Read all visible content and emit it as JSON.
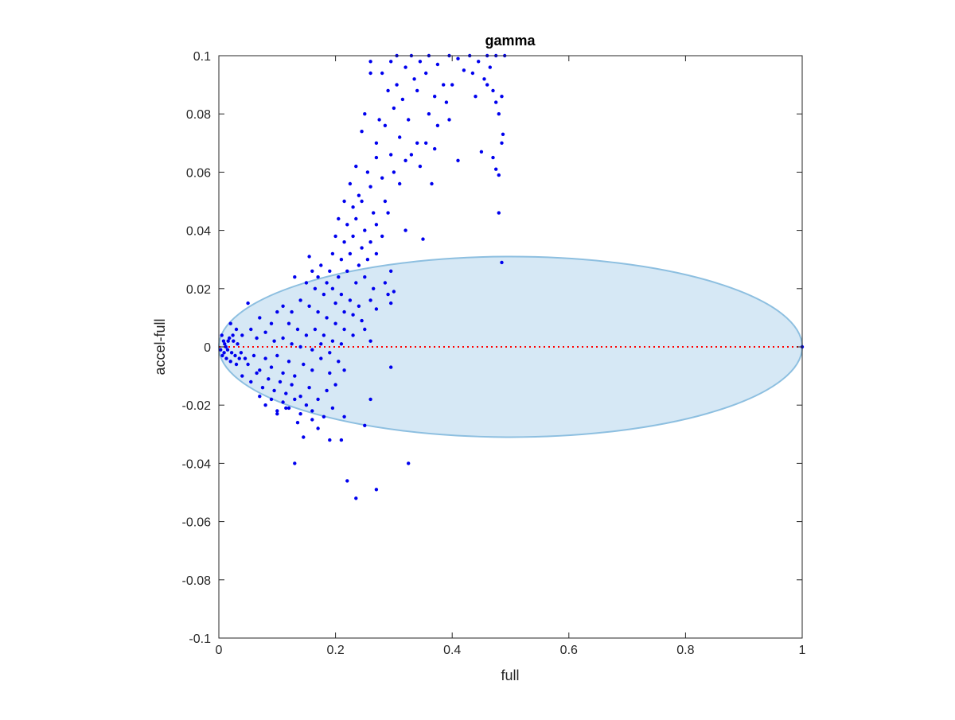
{
  "chart_data": {
    "type": "scatter",
    "title": "gamma",
    "xlabel": "full",
    "ylabel": "accel-full",
    "xlim": [
      0,
      1
    ],
    "ylim": [
      -0.1,
      0.1
    ],
    "x_ticks": [
      0,
      0.2,
      0.4,
      0.6,
      0.8,
      1
    ],
    "x_tick_labels": [
      "0",
      "0.2",
      "0.4",
      "0.6",
      "0.8",
      "1"
    ],
    "y_ticks": [
      -0.1,
      -0.08,
      -0.06,
      -0.04,
      -0.02,
      0,
      0.02,
      0.04,
      0.06,
      0.08,
      0.1
    ],
    "y_tick_labels": [
      "-0.1",
      "-0.08",
      "-0.06",
      "-0.04",
      "-0.02",
      "0",
      "0.02",
      "0.04",
      "0.06",
      "0.08",
      "0.1"
    ],
    "grid": false,
    "legend": "none",
    "ellipse": {
      "center": [
        0.5,
        0.0
      ],
      "semi_axes": [
        0.5,
        0.031
      ],
      "fill": "#d6e8f5",
      "stroke": "#8dbfe0"
    },
    "reference_line": {
      "x": [
        0,
        1
      ],
      "y": [
        0,
        0
      ],
      "color": "#ff0000",
      "style": "dotted"
    },
    "series": [
      {
        "color": "#0000ee",
        "marker": "point",
        "points": [
          [
            1.0,
            0.0
          ],
          [
            0.485,
            0.029
          ],
          [
            0.48,
            0.046
          ],
          [
            0.305,
            0.1
          ],
          [
            0.33,
            0.1
          ],
          [
            0.36,
            0.1
          ],
          [
            0.395,
            0.1
          ],
          [
            0.43,
            0.1
          ],
          [
            0.46,
            0.1
          ],
          [
            0.475,
            0.1
          ],
          [
            0.49,
            0.1
          ],
          [
            0.295,
            0.098
          ],
          [
            0.32,
            0.096
          ],
          [
            0.345,
            0.098
          ],
          [
            0.375,
            0.097
          ],
          [
            0.41,
            0.099
          ],
          [
            0.445,
            0.098
          ],
          [
            0.26,
            0.098
          ],
          [
            0.28,
            0.094
          ],
          [
            0.305,
            0.09
          ],
          [
            0.335,
            0.092
          ],
          [
            0.355,
            0.094
          ],
          [
            0.385,
            0.09
          ],
          [
            0.42,
            0.095
          ],
          [
            0.455,
            0.092
          ],
          [
            0.47,
            0.088
          ],
          [
            0.26,
            0.094
          ],
          [
            0.29,
            0.088
          ],
          [
            0.315,
            0.085
          ],
          [
            0.34,
            0.088
          ],
          [
            0.37,
            0.086
          ],
          [
            0.4,
            0.09
          ],
          [
            0.435,
            0.094
          ],
          [
            0.465,
            0.096
          ],
          [
            0.25,
            0.08
          ],
          [
            0.275,
            0.078
          ],
          [
            0.3,
            0.082
          ],
          [
            0.325,
            0.078
          ],
          [
            0.36,
            0.08
          ],
          [
            0.39,
            0.084
          ],
          [
            0.44,
            0.086
          ],
          [
            0.475,
            0.084
          ],
          [
            0.485,
            0.086
          ],
          [
            0.245,
            0.074
          ],
          [
            0.27,
            0.07
          ],
          [
            0.285,
            0.076
          ],
          [
            0.31,
            0.072
          ],
          [
            0.34,
            0.07
          ],
          [
            0.375,
            0.076
          ],
          [
            0.395,
            0.078
          ],
          [
            0.46,
            0.09
          ],
          [
            0.235,
            0.062
          ],
          [
            0.255,
            0.06
          ],
          [
            0.27,
            0.065
          ],
          [
            0.295,
            0.066
          ],
          [
            0.32,
            0.064
          ],
          [
            0.345,
            0.062
          ],
          [
            0.37,
            0.068
          ],
          [
            0.41,
            0.064
          ],
          [
            0.45,
            0.067
          ],
          [
            0.48,
            0.08
          ],
          [
            0.225,
            0.056
          ],
          [
            0.24,
            0.052
          ],
          [
            0.26,
            0.055
          ],
          [
            0.28,
            0.058
          ],
          [
            0.3,
            0.06
          ],
          [
            0.33,
            0.066
          ],
          [
            0.355,
            0.07
          ],
          [
            0.485,
            0.07
          ],
          [
            0.487,
            0.073
          ],
          [
            0.215,
            0.05
          ],
          [
            0.23,
            0.048
          ],
          [
            0.245,
            0.05
          ],
          [
            0.265,
            0.046
          ],
          [
            0.285,
            0.05
          ],
          [
            0.31,
            0.056
          ],
          [
            0.475,
            0.061
          ],
          [
            0.48,
            0.059
          ],
          [
            0.205,
            0.044
          ],
          [
            0.22,
            0.042
          ],
          [
            0.235,
            0.044
          ],
          [
            0.25,
            0.04
          ],
          [
            0.27,
            0.042
          ],
          [
            0.29,
            0.046
          ],
          [
            0.365,
            0.056
          ],
          [
            0.47,
            0.065
          ],
          [
            0.2,
            0.038
          ],
          [
            0.215,
            0.036
          ],
          [
            0.23,
            0.038
          ],
          [
            0.245,
            0.034
          ],
          [
            0.26,
            0.036
          ],
          [
            0.28,
            0.038
          ],
          [
            0.32,
            0.04
          ],
          [
            0.35,
            0.037
          ],
          [
            0.195,
            0.032
          ],
          [
            0.21,
            0.03
          ],
          [
            0.225,
            0.032
          ],
          [
            0.24,
            0.028
          ],
          [
            0.255,
            0.03
          ],
          [
            0.27,
            0.032
          ],
          [
            0.295,
            0.026
          ],
          [
            0.16,
            0.026
          ],
          [
            0.175,
            0.028
          ],
          [
            0.19,
            0.026
          ],
          [
            0.205,
            0.024
          ],
          [
            0.22,
            0.026
          ],
          [
            0.235,
            0.022
          ],
          [
            0.25,
            0.024
          ],
          [
            0.265,
            0.02
          ],
          [
            0.285,
            0.022
          ],
          [
            0.13,
            0.024
          ],
          [
            0.15,
            0.022
          ],
          [
            0.165,
            0.02
          ],
          [
            0.18,
            0.018
          ],
          [
            0.195,
            0.02
          ],
          [
            0.21,
            0.018
          ],
          [
            0.225,
            0.016
          ],
          [
            0.24,
            0.014
          ],
          [
            0.26,
            0.016
          ],
          [
            0.29,
            0.018
          ],
          [
            0.3,
            0.019
          ],
          [
            0.155,
            0.031
          ],
          [
            0.17,
            0.024
          ],
          [
            0.185,
            0.022
          ],
          [
            0.2,
            0.015
          ],
          [
            0.215,
            0.012
          ],
          [
            0.23,
            0.011
          ],
          [
            0.245,
            0.009
          ],
          [
            0.27,
            0.013
          ],
          [
            0.295,
            0.015
          ],
          [
            0.11,
            0.014
          ],
          [
            0.125,
            0.012
          ],
          [
            0.14,
            0.016
          ],
          [
            0.155,
            0.014
          ],
          [
            0.17,
            0.012
          ],
          [
            0.185,
            0.01
          ],
          [
            0.2,
            0.008
          ],
          [
            0.215,
            0.006
          ],
          [
            0.23,
            0.004
          ],
          [
            0.25,
            0.006
          ],
          [
            0.26,
            0.002
          ],
          [
            0.05,
            0.015
          ],
          [
            0.07,
            0.01
          ],
          [
            0.09,
            0.008
          ],
          [
            0.1,
            0.012
          ],
          [
            0.12,
            0.008
          ],
          [
            0.135,
            0.006
          ],
          [
            0.15,
            0.004
          ],
          [
            0.165,
            0.006
          ],
          [
            0.18,
            0.004
          ],
          [
            0.195,
            0.002
          ],
          [
            0.21,
            0.001
          ],
          [
            0.02,
            0.008
          ],
          [
            0.03,
            0.006
          ],
          [
            0.04,
            0.004
          ],
          [
            0.055,
            0.006
          ],
          [
            0.065,
            0.003
          ],
          [
            0.08,
            0.005
          ],
          [
            0.095,
            0.002
          ],
          [
            0.11,
            0.003
          ],
          [
            0.125,
            0.001
          ],
          [
            0.14,
            0.0
          ],
          [
            0.16,
            -0.001
          ],
          [
            0.175,
            0.001
          ],
          [
            0.19,
            -0.002
          ],
          [
            0.005,
            0.004
          ],
          [
            0.008,
            0.002
          ],
          [
            0.01,
            0.001
          ],
          [
            0.012,
            0.0
          ],
          [
            0.015,
            -0.001
          ],
          [
            0.018,
            0.003
          ],
          [
            0.022,
            -0.002
          ],
          [
            0.025,
            0.002
          ],
          [
            0.028,
            -0.003
          ],
          [
            0.032,
            0.001
          ],
          [
            0.035,
            -0.004
          ],
          [
            0.003,
            -0.001
          ],
          [
            0.006,
            -0.003
          ],
          [
            0.009,
            -0.002
          ],
          [
            0.013,
            -0.004
          ],
          [
            0.016,
            0.002
          ],
          [
            0.02,
            -0.005
          ],
          [
            0.024,
            0.004
          ],
          [
            0.03,
            -0.006
          ],
          [
            0.038,
            -0.002
          ],
          [
            0.045,
            -0.004
          ],
          [
            0.05,
            -0.006
          ],
          [
            0.06,
            -0.003
          ],
          [
            0.07,
            -0.008
          ],
          [
            0.08,
            -0.004
          ],
          [
            0.09,
            -0.007
          ],
          [
            0.1,
            -0.003
          ],
          [
            0.11,
            -0.009
          ],
          [
            0.12,
            -0.005
          ],
          [
            0.13,
            -0.01
          ],
          [
            0.145,
            -0.006
          ],
          [
            0.16,
            -0.008
          ],
          [
            0.175,
            -0.004
          ],
          [
            0.19,
            -0.009
          ],
          [
            0.205,
            -0.005
          ],
          [
            0.215,
            -0.008
          ],
          [
            0.04,
            -0.01
          ],
          [
            0.055,
            -0.012
          ],
          [
            0.065,
            -0.009
          ],
          [
            0.075,
            -0.014
          ],
          [
            0.085,
            -0.011
          ],
          [
            0.095,
            -0.015
          ],
          [
            0.105,
            -0.012
          ],
          [
            0.115,
            -0.016
          ],
          [
            0.125,
            -0.013
          ],
          [
            0.14,
            -0.017
          ],
          [
            0.155,
            -0.014
          ],
          [
            0.17,
            -0.018
          ],
          [
            0.185,
            -0.015
          ],
          [
            0.2,
            -0.013
          ],
          [
            0.07,
            -0.017
          ],
          [
            0.08,
            -0.02
          ],
          [
            0.09,
            -0.018
          ],
          [
            0.1,
            -0.022
          ],
          [
            0.11,
            -0.019
          ],
          [
            0.12,
            -0.021
          ],
          [
            0.13,
            -0.018
          ],
          [
            0.14,
            -0.023
          ],
          [
            0.15,
            -0.02
          ],
          [
            0.16,
            -0.022
          ],
          [
            0.18,
            -0.024
          ],
          [
            0.195,
            -0.021
          ],
          [
            0.1,
            -0.023
          ],
          [
            0.115,
            -0.021
          ],
          [
            0.135,
            -0.026
          ],
          [
            0.16,
            -0.025
          ],
          [
            0.17,
            -0.028
          ],
          [
            0.215,
            -0.024
          ],
          [
            0.26,
            -0.018
          ],
          [
            0.25,
            -0.027
          ],
          [
            0.295,
            -0.007
          ],
          [
            0.145,
            -0.031
          ],
          [
            0.19,
            -0.032
          ],
          [
            0.21,
            -0.032
          ],
          [
            0.13,
            -0.04
          ],
          [
            0.325,
            -0.04
          ],
          [
            0.22,
            -0.046
          ],
          [
            0.27,
            -0.049
          ],
          [
            0.235,
            -0.052
          ]
        ]
      }
    ]
  }
}
